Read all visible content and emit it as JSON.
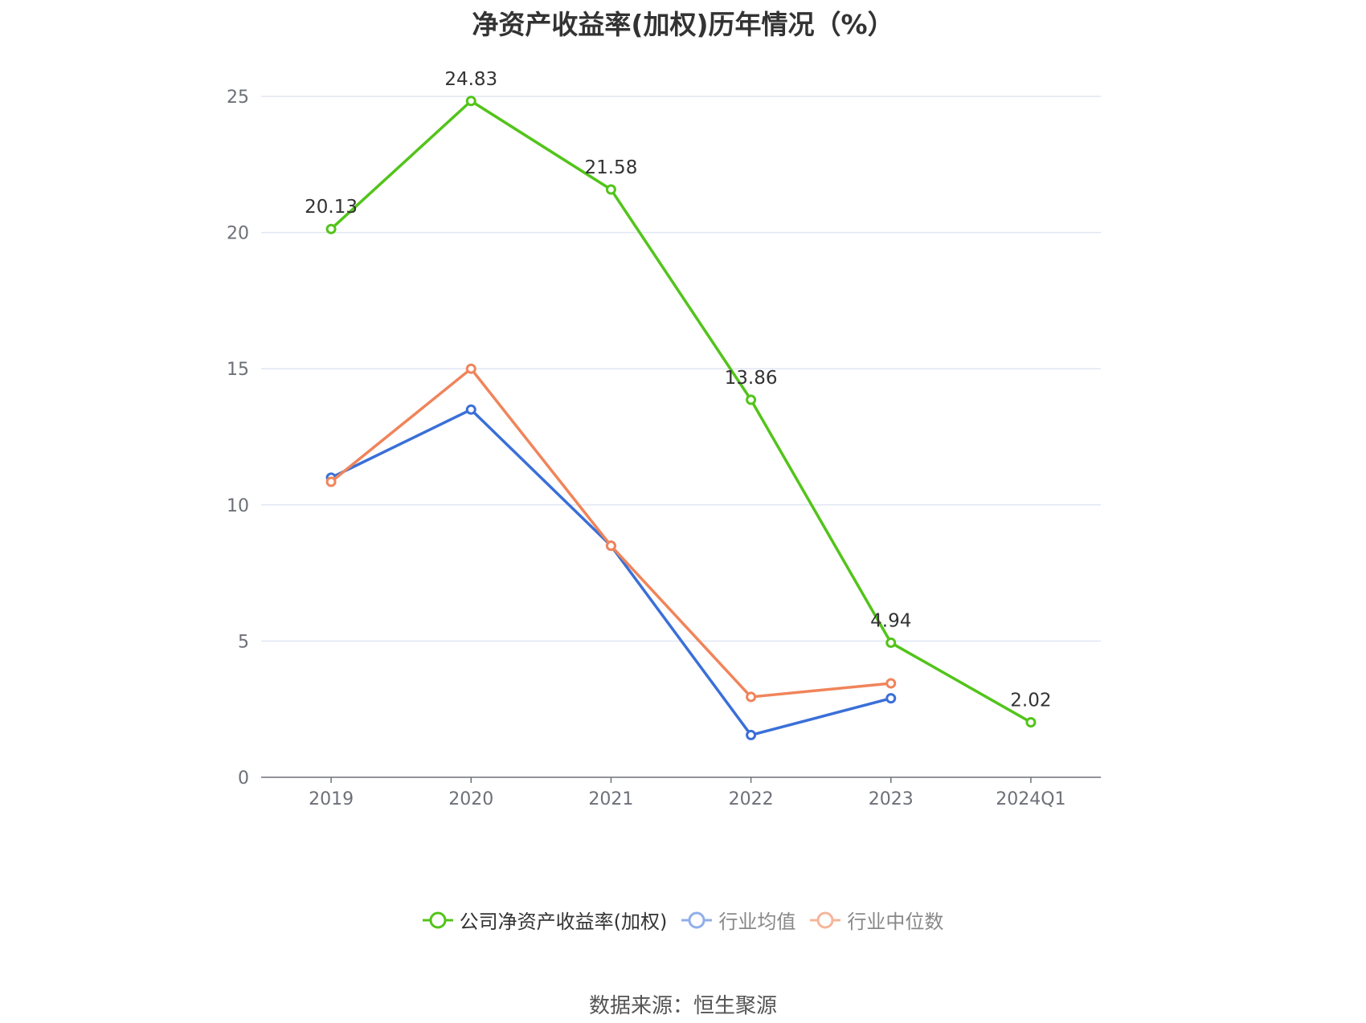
{
  "title": "净资产收益率(加权)历年情况（%）",
  "source": "数据来源：恒生聚源",
  "chart_data": {
    "type": "line",
    "title": "净资产收益率(加权)历年情况（%）",
    "categories": [
      "2019",
      "2020",
      "2021",
      "2022",
      "2023",
      "2024Q1"
    ],
    "ylim": [
      0,
      25
    ],
    "yticks": [
      0,
      5,
      10,
      15,
      20,
      25
    ],
    "grid": true,
    "legend_position": "bottom",
    "series": [
      {
        "name": "公司净资产收益率(加权)",
        "color": "#52c41a",
        "values": [
          20.13,
          24.83,
          21.58,
          13.86,
          4.94,
          2.02
        ],
        "labels": [
          "20.13",
          "24.83",
          "21.58",
          "13.86",
          "4.94",
          "2.02"
        ]
      },
      {
        "name": "行业均值",
        "color": "#3a6fd8",
        "values": [
          11.0,
          13.5,
          8.5,
          1.55,
          2.9,
          null
        ]
      },
      {
        "name": "行业中位数",
        "color": "#f0845a",
        "values": [
          10.85,
          15.0,
          8.5,
          2.95,
          3.45,
          null
        ]
      }
    ]
  }
}
